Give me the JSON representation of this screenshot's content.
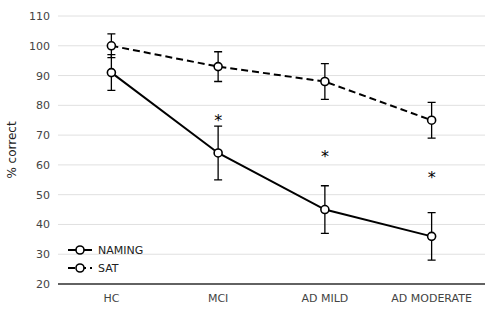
{
  "chart_data": {
    "type": "line",
    "categories": [
      "HC",
      "MCI",
      "AD MILD",
      "AD MODERATE"
    ],
    "series": [
      {
        "name": "NAMING",
        "color": "#000000",
        "line_style": "solid",
        "marker": "circle",
        "values": [
          91,
          64,
          45,
          36
        ],
        "errors": [
          6,
          9,
          8,
          8
        ]
      },
      {
        "name": "SAT",
        "color": "#000000",
        "line_style": "dashed",
        "marker": "circle",
        "values": [
          100,
          93,
          88,
          75
        ],
        "errors": [
          4,
          5,
          6,
          6
        ]
      }
    ],
    "ylim": [
      20,
      110
    ],
    "yticks": [
      20,
      30,
      40,
      50,
      60,
      70,
      80,
      90,
      100,
      110
    ],
    "ylabel": "% correct",
    "annotations": [
      {
        "text": "*",
        "category": "MCI",
        "y": 75
      },
      {
        "text": "*",
        "category": "AD MILD",
        "y": 63
      },
      {
        "text": "*",
        "category": "AD MODERATE",
        "y": 56
      }
    ],
    "grid": true,
    "legend": "lower left"
  }
}
